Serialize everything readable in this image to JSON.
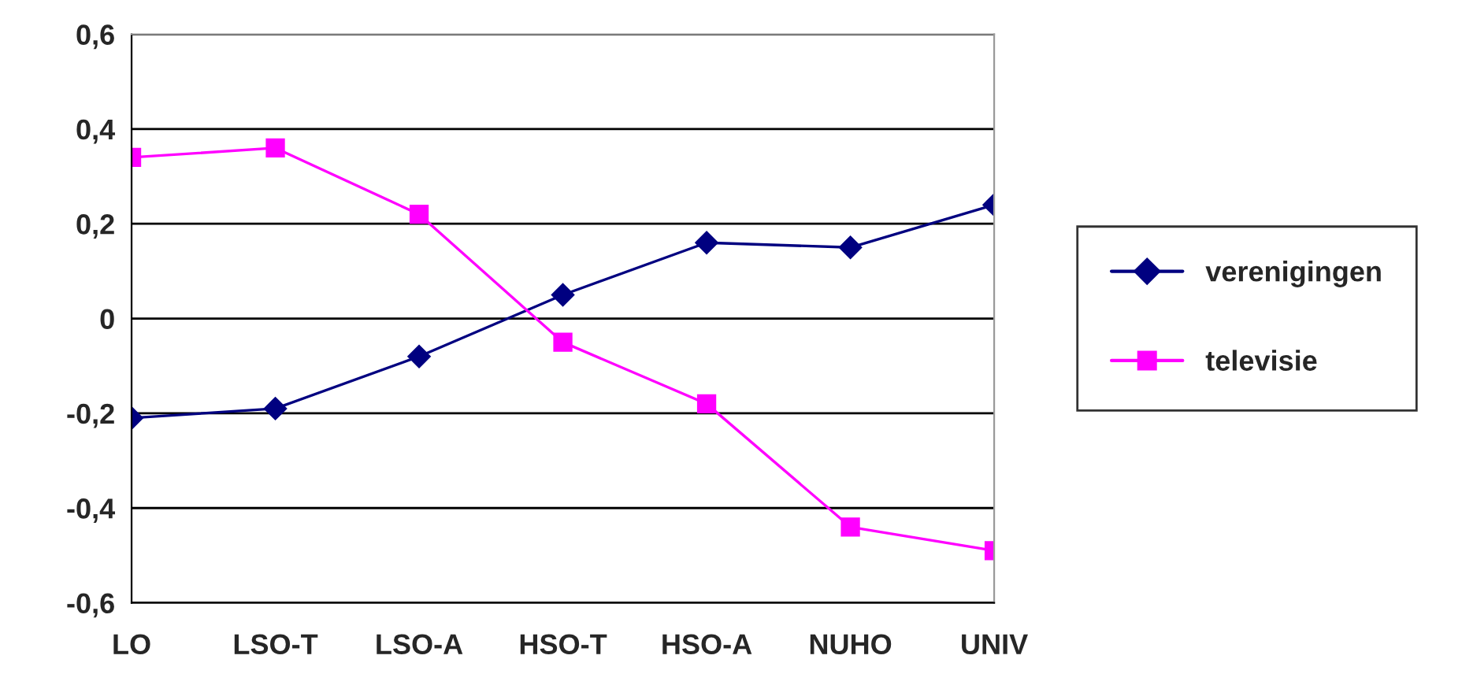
{
  "chart_data": {
    "type": "line",
    "categories": [
      "LO",
      "LSO-T",
      "LSO-A",
      "HSO-T",
      "HSO-A",
      "NUHO",
      "UNIV"
    ],
    "series": [
      {
        "name": "verenigingen",
        "color": "#000080",
        "marker": "diamond",
        "values": [
          -0.21,
          -0.19,
          -0.08,
          0.05,
          0.16,
          0.15,
          0.24
        ]
      },
      {
        "name": "televisie",
        "color": "#ff00ff",
        "marker": "square",
        "values": [
          0.34,
          0.36,
          0.22,
          -0.05,
          -0.18,
          -0.44,
          -0.49
        ]
      }
    ],
    "ylim": [
      -0.6,
      0.6
    ],
    "yticks": [
      {
        "value": -0.6,
        "label": "-0,6"
      },
      {
        "value": -0.4,
        "label": "-0,4"
      },
      {
        "value": -0.2,
        "label": "-0,2"
      },
      0,
      {
        "value": 0.2,
        "label": "0,2"
      },
      {
        "value": 0.4,
        "label": "0,4"
      },
      {
        "value": 0.6,
        "label": "0,6"
      }
    ],
    "grid": "y",
    "legend": "right",
    "line_style": "solid"
  }
}
